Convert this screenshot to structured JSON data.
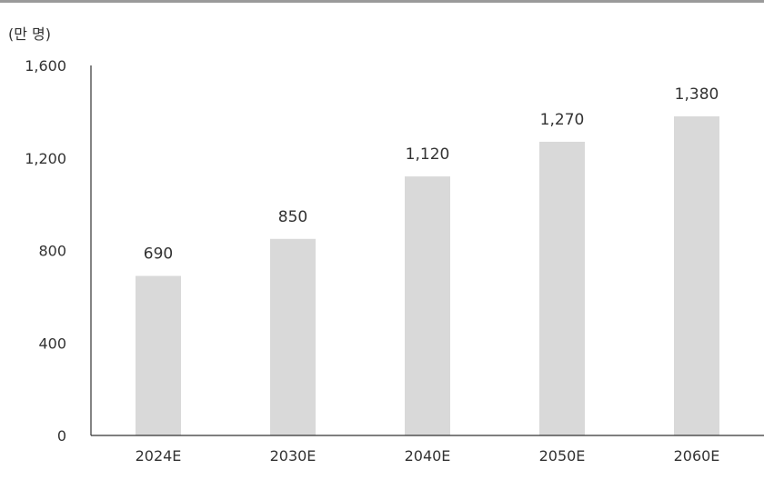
{
  "unit_label": "(만 명)",
  "chart_data": {
    "type": "bar",
    "title": "",
    "xlabel": "",
    "ylabel": "(만 명)",
    "categories": [
      "2024E",
      "2030E",
      "2040E",
      "2050E",
      "2060E"
    ],
    "values": [
      690,
      850,
      1120,
      1270,
      1380
    ],
    "data_labels": [
      "690",
      "850",
      "1,120",
      "1,270",
      "1,380"
    ],
    "ylim": [
      0,
      1600
    ],
    "yticks": [
      0,
      400,
      800,
      1200,
      1600
    ],
    "ytick_labels": [
      "0",
      "400",
      "800",
      "1,200",
      "1,600"
    ],
    "grid": false,
    "legend": "none",
    "bar_color": "#d9d9d9",
    "axis_color": "#333333",
    "top_rule_color": "#9a9a9a"
  }
}
